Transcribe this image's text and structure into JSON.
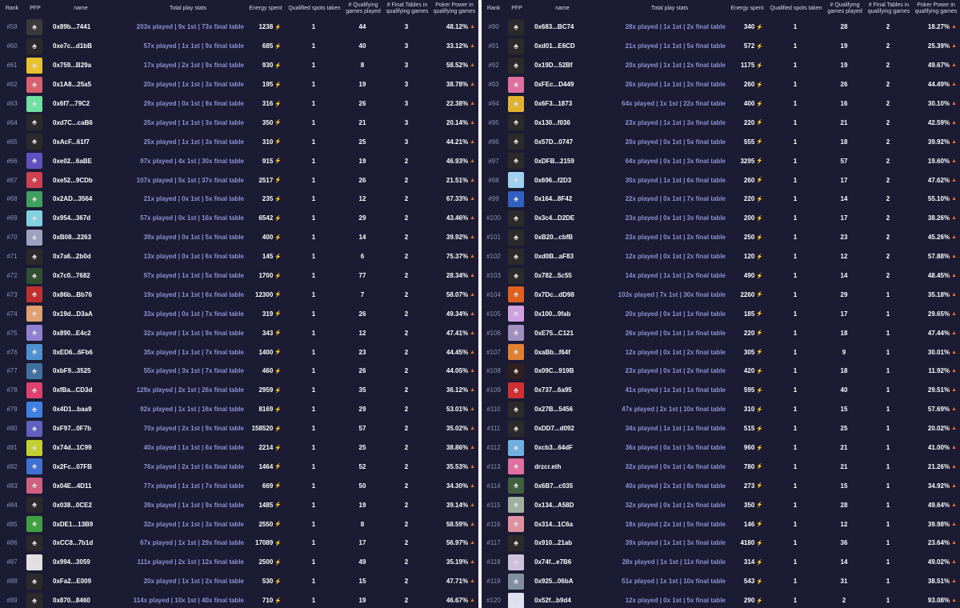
{
  "headers": {
    "rank": "Rank",
    "pfp": "PFP",
    "name": "name",
    "stats": "Total play stats",
    "energy": "Energy spent",
    "qualified": "Qualified spots taken",
    "games": "# Qualifying games played",
    "final_tables": "# Final Tables in qualifying games",
    "poker_power": "Poker Power in qualifying games"
  },
  "icons": {
    "energy": "bolt-icon",
    "power": "flame-icon",
    "pfp_default": "poker-bunny-avatar"
  },
  "colors": {
    "panel_bg": "#1b1c33",
    "stats_text": "#8f90d6",
    "bolt": "#5fe0c8",
    "flame": "#f06b2a"
  },
  "left_rows": [
    {
      "rank": "#59",
      "name": "0x89b...7441",
      "stats": "203x played | 9x 1st | 73x final table",
      "energy": "1238",
      "q": "1",
      "g": "44",
      "ft": "3",
      "pp": "48.12%",
      "av": "#3a3a3a"
    },
    {
      "rank": "#60",
      "name": "0xe7c...d1bB",
      "stats": "57x played | 1x 1st | 9x final table",
      "energy": "685",
      "q": "1",
      "g": "40",
      "ft": "3",
      "pp": "33.12%",
      "av": "#2a2a2a"
    },
    {
      "rank": "#61",
      "name": "0x759...B29a",
      "stats": "17x played | 2x 1st | 9x final table",
      "energy": "930",
      "q": "1",
      "g": "8",
      "ft": "3",
      "pp": "58.52%",
      "av": "#e8c030"
    },
    {
      "rank": "#62",
      "name": "0x1A8...25a5",
      "stats": "20x played | 1x 1st | 3x final table",
      "energy": "195",
      "q": "1",
      "g": "19",
      "ft": "3",
      "pp": "38.78%",
      "av": "#d86070"
    },
    {
      "rank": "#63",
      "name": "0x6f7...79C2",
      "stats": "29x played | 0x 1st | 9x final table",
      "energy": "316",
      "q": "1",
      "g": "26",
      "ft": "3",
      "pp": "22.38%",
      "av": "#70e0a0"
    },
    {
      "rank": "#64",
      "name": "0xd7C...caB6",
      "stats": "25x played | 1x 1st | 3x final table",
      "energy": "350",
      "q": "1",
      "g": "21",
      "ft": "3",
      "pp": "20.14%",
      "av": "#2a2a2a"
    },
    {
      "rank": "#65",
      "name": "0xAcF...61f7",
      "stats": "25x played | 1x 1st | 3x final table",
      "energy": "310",
      "q": "1",
      "g": "25",
      "ft": "3",
      "pp": "44.21%",
      "av": "#2a2a2a"
    },
    {
      "rank": "#66",
      "name": "0xe02...6aBE",
      "stats": "97x played | 4x 1st | 30x final table",
      "energy": "915",
      "q": "1",
      "g": "19",
      "ft": "2",
      "pp": "46.93%",
      "av": "#6050c0"
    },
    {
      "rank": "#67",
      "name": "0xe52...9CDb",
      "stats": "107x played | 5x 1st | 37x final table",
      "energy": "2517",
      "q": "1",
      "g": "26",
      "ft": "2",
      "pp": "21.51%",
      "av": "#d04050"
    },
    {
      "rank": "#68",
      "name": "0x2AD...3564",
      "stats": "21x played | 0x 1st | 5x final table",
      "energy": "235",
      "q": "1",
      "g": "12",
      "ft": "2",
      "pp": "67.33%",
      "av": "#40a060"
    },
    {
      "rank": "#69",
      "name": "0x954...367d",
      "stats": "57x played | 0x 1st | 16x final table",
      "energy": "6542",
      "q": "1",
      "g": "29",
      "ft": "2",
      "pp": "43.46%",
      "av": "#80d0e0"
    },
    {
      "rank": "#70",
      "name": "0xB08...2263",
      "stats": "39x played | 0x 1st | 5x final table",
      "energy": "400",
      "q": "1",
      "g": "14",
      "ft": "2",
      "pp": "39.92%",
      "av": "#a0a0c0"
    },
    {
      "rank": "#71",
      "name": "0x7a6...2b0d",
      "stats": "13x played | 0x 1st | 6x final table",
      "energy": "145",
      "q": "1",
      "g": "6",
      "ft": "2",
      "pp": "75.37%",
      "av": "#2a2a2a"
    },
    {
      "rank": "#72",
      "name": "0x7c0...7682",
      "stats": "97x played | 1x 1st | 5x final table",
      "energy": "1700",
      "q": "1",
      "g": "77",
      "ft": "2",
      "pp": "28.34%",
      "av": "#305030"
    },
    {
      "rank": "#73",
      "name": "0x86b...Bb76",
      "stats": "19x played | 1x 1st | 6x final table",
      "energy": "12300",
      "q": "1",
      "g": "7",
      "ft": "2",
      "pp": "58.07%",
      "av": "#c03030"
    },
    {
      "rank": "#74",
      "name": "0x19d...D3aA",
      "stats": "33x played | 0x 1st | 7x final table",
      "energy": "319",
      "q": "1",
      "g": "26",
      "ft": "2",
      "pp": "49.34%",
      "av": "#e0a070"
    },
    {
      "rank": "#75",
      "name": "0x890...E4c2",
      "stats": "32x played | 1x 1st | 9x final table",
      "energy": "343",
      "q": "1",
      "g": "12",
      "ft": "2",
      "pp": "47.41%",
      "av": "#9080d0"
    },
    {
      "rank": "#76",
      "name": "0xED6...6Fb6",
      "stats": "35x played | 1x 1st | 7x final table",
      "energy": "1400",
      "q": "1",
      "g": "23",
      "ft": "2",
      "pp": "44.45%",
      "av": "#5090d0"
    },
    {
      "rank": "#77",
      "name": "0xbF9...3525",
      "stats": "55x played | 3x 1st | 7x final table",
      "energy": "460",
      "q": "1",
      "g": "26",
      "ft": "2",
      "pp": "44.05%",
      "av": "#4070a0"
    },
    {
      "rank": "#78",
      "name": "0xfBa...CD3d",
      "stats": "129x played | 2x 1st | 26x final table",
      "energy": "2959",
      "q": "1",
      "g": "35",
      "ft": "2",
      "pp": "36.12%",
      "av": "#e04070"
    },
    {
      "rank": "#79",
      "name": "0x4D1...baa9",
      "stats": "92x played | 1x 1st | 16x final table",
      "energy": "8169",
      "q": "1",
      "g": "29",
      "ft": "2",
      "pp": "53.01%",
      "av": "#4080e0"
    },
    {
      "rank": "#80",
      "name": "0xF97...0F7b",
      "stats": "70x played | 2x 1st | 9x final table",
      "energy": "158520",
      "q": "1",
      "g": "57",
      "ft": "2",
      "pp": "35.02%",
      "av": "#6060c0"
    },
    {
      "rank": "#81",
      "name": "0x74d...1C99",
      "stats": "40x played | 1x 1st | 6x final table",
      "energy": "2214",
      "q": "1",
      "g": "25",
      "ft": "2",
      "pp": "38.86%",
      "av": "#c0d030"
    },
    {
      "rank": "#82",
      "name": "0x2Fc...07FB",
      "stats": "76x played | 2x 1st | 6x final table",
      "energy": "1464",
      "q": "1",
      "g": "52",
      "ft": "2",
      "pp": "35.53%",
      "av": "#4070d0"
    },
    {
      "rank": "#83",
      "name": "0x04E...4D11",
      "stats": "77x played | 1x 1st | 7x final table",
      "energy": "669",
      "q": "1",
      "g": "50",
      "ft": "2",
      "pp": "34.30%",
      "av": "#d06080"
    },
    {
      "rank": "#84",
      "name": "0x038...0CE2",
      "stats": "39x played | 1x 1st | 9x final table",
      "energy": "1485",
      "q": "1",
      "g": "19",
      "ft": "2",
      "pp": "39.14%",
      "av": "#2a2a2a"
    },
    {
      "rank": "#85",
      "name": "0xDE1...13B9",
      "stats": "32x played | 1x 1st | 3x final table",
      "energy": "2550",
      "q": "1",
      "g": "8",
      "ft": "2",
      "pp": "58.59%",
      "av": "#40a040"
    },
    {
      "rank": "#86",
      "name": "0xCC8...7b1d",
      "stats": "67x played | 1x 1st | 29x final table",
      "energy": "17089",
      "q": "1",
      "g": "17",
      "ft": "2",
      "pp": "56.97%",
      "av": "#2a2a2a"
    },
    {
      "rank": "#87",
      "name": "0x994...3059",
      "stats": "111x played | 2x 1st | 12x final table",
      "energy": "2500",
      "q": "1",
      "g": "49",
      "ft": "2",
      "pp": "35.19%",
      "av": "#e0e0e0"
    },
    {
      "rank": "#88",
      "name": "0xFa2...E009",
      "stats": "20x played | 1x 1st | 2x final table",
      "energy": "530",
      "q": "1",
      "g": "15",
      "ft": "2",
      "pp": "47.71%",
      "av": "#2a2a2a"
    },
    {
      "rank": "#89",
      "name": "0x870...8460",
      "stats": "114x played | 10x 1st | 40x final table",
      "energy": "710",
      "q": "1",
      "g": "19",
      "ft": "2",
      "pp": "46.67%",
      "av": "#2a2a2a"
    }
  ],
  "right_rows": [
    {
      "rank": "#90",
      "name": "0x683...BC74",
      "stats": "28x played | 1x 1st | 2x final table",
      "energy": "340",
      "q": "1",
      "g": "28",
      "ft": "2",
      "pp": "18.27%",
      "av": "#2a2a2a"
    },
    {
      "rank": "#91",
      "name": "0xd01...E6CD",
      "stats": "21x played | 1x 1st | 5x final table",
      "energy": "572",
      "q": "1",
      "g": "19",
      "ft": "2",
      "pp": "25.39%",
      "av": "#2a2a2a"
    },
    {
      "rank": "#92",
      "name": "0x19D...52Bf",
      "stats": "20x played | 1x 1st | 2x final table",
      "energy": "1175",
      "q": "1",
      "g": "19",
      "ft": "2",
      "pp": "49.67%",
      "av": "#2a2a2a"
    },
    {
      "rank": "#93",
      "name": "0xFEc...D449",
      "stats": "26x played | 1x 1st | 2x final table",
      "energy": "260",
      "q": "1",
      "g": "26",
      "ft": "2",
      "pp": "44.49%",
      "av": "#e070a0"
    },
    {
      "rank": "#94",
      "name": "0x6F3...1873",
      "stats": "64x played | 1x 1st | 22x final table",
      "energy": "400",
      "q": "1",
      "g": "16",
      "ft": "2",
      "pp": "30.10%",
      "av": "#e0b030"
    },
    {
      "rank": "#95",
      "name": "0x130...f036",
      "stats": "23x played | 1x 1st | 3x final table",
      "energy": "220",
      "q": "1",
      "g": "21",
      "ft": "2",
      "pp": "42.59%",
      "av": "#2a2a2a"
    },
    {
      "rank": "#96",
      "name": "0x57D...0747",
      "stats": "20x played | 0x 1st | 5x final table",
      "energy": "555",
      "q": "1",
      "g": "18",
      "ft": "2",
      "pp": "39.92%",
      "av": "#2a2a2a"
    },
    {
      "rank": "#97",
      "name": "0xDFB...2159",
      "stats": "64x played | 0x 1st | 3x final table",
      "energy": "3295",
      "q": "1",
      "g": "57",
      "ft": "2",
      "pp": "19.60%",
      "av": "#2a2a2a"
    },
    {
      "rank": "#98",
      "name": "0x696...f2D3",
      "stats": "35x played | 1x 1st | 6x final table",
      "energy": "260",
      "q": "1",
      "g": "17",
      "ft": "2",
      "pp": "47.62%",
      "av": "#a0d0f0"
    },
    {
      "rank": "#99",
      "name": "0x164...8F42",
      "stats": "22x played | 0x 1st | 7x final table",
      "energy": "220",
      "q": "1",
      "g": "14",
      "ft": "2",
      "pp": "55.10%",
      "av": "#3060c0"
    },
    {
      "rank": "#100",
      "name": "0x3c4...D2DE",
      "stats": "23x played | 0x 1st | 3x final table",
      "energy": "200",
      "q": "1",
      "g": "17",
      "ft": "2",
      "pp": "38.26%",
      "av": "#2a2a2a"
    },
    {
      "rank": "#101",
      "name": "0xB20...cbfB",
      "stats": "23x played | 0x 1st | 2x final table",
      "energy": "250",
      "q": "1",
      "g": "23",
      "ft": "2",
      "pp": "45.26%",
      "av": "#2a2a2a"
    },
    {
      "rank": "#102",
      "name": "0xd0B...aF83",
      "stats": "12x played | 0x 1st | 2x final table",
      "energy": "120",
      "q": "1",
      "g": "12",
      "ft": "2",
      "pp": "57.88%",
      "av": "#2a2a2a"
    },
    {
      "rank": "#103",
      "name": "0x782...5c55",
      "stats": "14x played | 1x 1st | 2x final table",
      "energy": "490",
      "q": "1",
      "g": "14",
      "ft": "2",
      "pp": "48.45%",
      "av": "#2a2a2a"
    },
    {
      "rank": "#104",
      "name": "0x7Dc...dD98",
      "stats": "103x played | 7x 1st | 30x final table",
      "energy": "2260",
      "q": "1",
      "g": "29",
      "ft": "1",
      "pp": "35.18%",
      "av": "#e06020"
    },
    {
      "rank": "#105",
      "name": "0x100...9fab",
      "stats": "20x played | 0x 1st | 1x final table",
      "energy": "185",
      "q": "1",
      "g": "17",
      "ft": "1",
      "pp": "29.65%",
      "av": "#d0a0e0"
    },
    {
      "rank": "#106",
      "name": "0xE75...C121",
      "stats": "26x played | 0x 1st | 1x final table",
      "energy": "220",
      "q": "1",
      "g": "18",
      "ft": "1",
      "pp": "47.44%",
      "av": "#a090c0"
    },
    {
      "rank": "#107",
      "name": "0xaBb...f64f",
      "stats": "12x played | 0x 1st | 2x final table",
      "energy": "305",
      "q": "1",
      "g": "9",
      "ft": "1",
      "pp": "30.01%",
      "av": "#e08030"
    },
    {
      "rank": "#108",
      "name": "0x09C...919B",
      "stats": "23x played | 0x 1st | 2x final table",
      "energy": "420",
      "q": "1",
      "g": "18",
      "ft": "1",
      "pp": "11.92%",
      "av": "#302020"
    },
    {
      "rank": "#109",
      "name": "0x737...6a95",
      "stats": "41x played | 1x 1st | 1x final table",
      "energy": "595",
      "q": "1",
      "g": "40",
      "ft": "1",
      "pp": "29.51%",
      "av": "#d03030"
    },
    {
      "rank": "#110",
      "name": "0x27B...5456",
      "stats": "47x played | 2x 1st | 10x final table",
      "energy": "310",
      "q": "1",
      "g": "15",
      "ft": "1",
      "pp": "57.69%",
      "av": "#2a2a2a"
    },
    {
      "rank": "#111",
      "name": "0xDD7...d092",
      "stats": "34x played | 1x 1st | 1x final table",
      "energy": "515",
      "q": "1",
      "g": "25",
      "ft": "1",
      "pp": "20.02%",
      "av": "#2a2a2a"
    },
    {
      "rank": "#112",
      "name": "0xcb3...64dF",
      "stats": "36x played | 0x 1st | 3x final table",
      "energy": "960",
      "q": "1",
      "g": "21",
      "ft": "1",
      "pp": "41.00%",
      "av": "#70b0e0"
    },
    {
      "rank": "#113",
      "name": "drzcr.eth",
      "stats": "32x played | 0x 1st | 4x final table",
      "energy": "780",
      "q": "1",
      "g": "21",
      "ft": "1",
      "pp": "21.26%",
      "av": "#e070a0"
    },
    {
      "rank": "#114",
      "name": "0x6B7...c035",
      "stats": "40x played | 2x 1st | 8x final table",
      "energy": "273",
      "q": "1",
      "g": "15",
      "ft": "1",
      "pp": "34.92%",
      "av": "#406040"
    },
    {
      "rank": "#115",
      "name": "0x134...A58D",
      "stats": "32x played | 0x 1st | 2x final table",
      "energy": "350",
      "q": "1",
      "g": "28",
      "ft": "1",
      "pp": "49.64%",
      "av": "#a0b0a0"
    },
    {
      "rank": "#116",
      "name": "0x314...1C6a",
      "stats": "18x played | 2x 1st | 5x final table",
      "energy": "146",
      "q": "1",
      "g": "12",
      "ft": "1",
      "pp": "39.98%",
      "av": "#e090a0"
    },
    {
      "rank": "#117",
      "name": "0x910...21ab",
      "stats": "39x played | 1x 1st | 3x final table",
      "energy": "4180",
      "q": "1",
      "g": "36",
      "ft": "1",
      "pp": "23.64%",
      "av": "#2a2a2a"
    },
    {
      "rank": "#118",
      "name": "0x74f...e7B6",
      "stats": "28x played | 1x 1st | 11x final table",
      "energy": "314",
      "q": "1",
      "g": "14",
      "ft": "1",
      "pp": "49.02%",
      "av": "#d0c0e0"
    },
    {
      "rank": "#119",
      "name": "0x925...06bA",
      "stats": "51x played | 1x 1st | 10x final table",
      "energy": "543",
      "q": "1",
      "g": "31",
      "ft": "1",
      "pp": "38.51%",
      "av": "#8090a0"
    },
    {
      "rank": "#120",
      "name": "0x52f...b9d4",
      "stats": "12x played | 0x 1st | 5x final table",
      "energy": "290",
      "q": "1",
      "g": "2",
      "ft": "1",
      "pp": "93.08%",
      "av": "#e0e0f0"
    }
  ]
}
